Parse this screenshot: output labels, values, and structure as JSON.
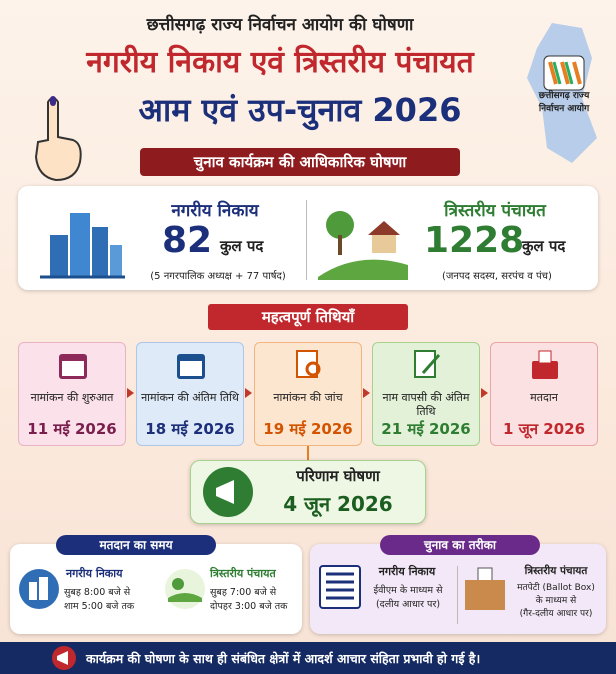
{
  "header": {
    "org": "छत्तीसगढ़ राज्य निर्वाचन आयोग की घोषणा",
    "title_line1": "नगरीय निकाय एवं त्रिस्तरीय पंचायत",
    "title_line2": "आम एवं उप-चुनाव 2026",
    "logo_line1": "छत्तीसगढ़ राज्य",
    "logo_line2": "निर्वाचन आयोग"
  },
  "banner": "चुनाव कार्यक्रम की आधिकारिक घोषणा",
  "summary": {
    "urban": {
      "title": "नगरीय निकाय",
      "count": "82",
      "unit": "कुल पद",
      "note": "(5 नगरपालिक अध्यक्ष + 77 पार्षद)"
    },
    "rural": {
      "title": "त्रिस्तरीय पंचायत",
      "count": "1228",
      "unit": "कुल पद",
      "note": "(जनपद सदस्य, सरपंच व पंच)"
    }
  },
  "dates_heading": "महत्वपूर्ण तिथियाँ",
  "steps": [
    {
      "label": "नामांकन की शुरुआत",
      "date": "11 मई 2026"
    },
    {
      "label": "नामांकन की अंतिम तिथि",
      "date": "18 मई 2026"
    },
    {
      "label": "नामांकन की जांच",
      "date": "19 मई 2026"
    },
    {
      "label": "नाम वापसी की अंतिम तिथि",
      "date": "21 मई 2026"
    },
    {
      "label": "मतदान",
      "date": "1 जून 2026"
    }
  ],
  "result": {
    "label": "परिणाम घोषणा",
    "date": "4 जून 2026"
  },
  "voting_time": {
    "heading": "मतदान का समय",
    "urban": {
      "title": "नगरीय निकाय",
      "line1": "सुबह 8:00 बजे से",
      "line2": "शाम 5:00 बजे तक"
    },
    "rural": {
      "title": "त्रिस्तरीय पंचायत",
      "line1": "सुबह 7:00 बजे से",
      "line2": "दोपहर 3:00 बजे तक"
    }
  },
  "method": {
    "heading": "चुनाव का तरीका",
    "urban": {
      "title": "नगरीय निकाय",
      "line1": "ईवीएम के माध्यम से",
      "line2": "(दलीय आधार पर)"
    },
    "rural": {
      "title": "त्रिस्तरीय पंचायत",
      "line1": "मतपेटी (Ballot Box)",
      "line2": "के माध्यम से",
      "line3": "(गैर-दलीय आधार पर)"
    }
  },
  "footer": "कार्यक्रम की घोषणा के साथ ही संबंधित क्षेत्रों में आदर्श आचार संहिता प्रभावी हो गई है।"
}
